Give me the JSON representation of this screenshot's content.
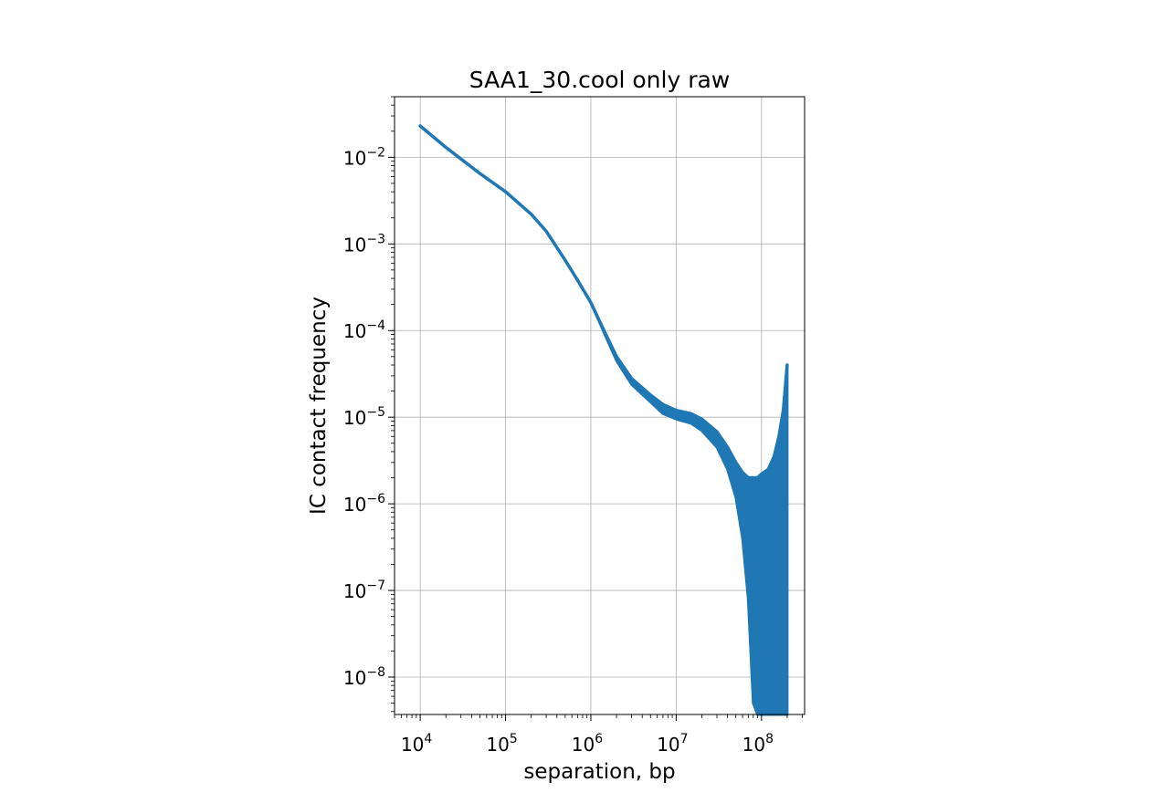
{
  "chart_data": {
    "type": "line",
    "title": "SAA1_30.cool only raw",
    "xlabel": "separation, bp",
    "ylabel": "IC contact frequency",
    "xscale": "log",
    "yscale": "log",
    "grid": true,
    "line_color": "#1f77b4",
    "xlim": [
      5000,
      320000000
    ],
    "ylim": [
      3.7e-09,
      0.05
    ],
    "xticks": [
      {
        "value": 10000,
        "base": "10",
        "exp": "4"
      },
      {
        "value": 100000,
        "base": "10",
        "exp": "5"
      },
      {
        "value": 1000000,
        "base": "10",
        "exp": "6"
      },
      {
        "value": 10000000,
        "base": "10",
        "exp": "7"
      },
      {
        "value": 100000000,
        "base": "10",
        "exp": "8"
      }
    ],
    "yticks": [
      {
        "value": 1e-08,
        "base": "10",
        "exp": "−8"
      },
      {
        "value": 1e-07,
        "base": "10",
        "exp": "−7"
      },
      {
        "value": 1e-06,
        "base": "10",
        "exp": "−6"
      },
      {
        "value": 1e-05,
        "base": "10",
        "exp": "−5"
      },
      {
        "value": 0.0001,
        "base": "10",
        "exp": "−4"
      },
      {
        "value": 0.001,
        "base": "10",
        "exp": "−3"
      },
      {
        "value": 0.01,
        "base": "10",
        "exp": "−2"
      }
    ],
    "series": [
      {
        "x": [
          10000,
          20000,
          50000,
          100000,
          200000,
          300000,
          500000,
          700000,
          1000000,
          1500000,
          2000000,
          3000000,
          5000000,
          7000000,
          10000000,
          15000000,
          20000000,
          30000000,
          40000000,
          50000000,
          60000000,
          70000000,
          80000000,
          90000000,
          100000000,
          120000000,
          140000000,
          160000000,
          180000000,
          200000000
        ],
        "y": [
          0.023,
          0.013,
          0.0065,
          0.004,
          0.0022,
          0.0014,
          0.00065,
          0.00038,
          0.00021,
          9e-05,
          5e-05,
          2.8e-05,
          1.8e-05,
          1.4e-05,
          1.2e-05,
          1.1e-05,
          9.5e-06,
          6.8e-06,
          4.5e-06,
          3e-06,
          2.3e-06,
          2e-06,
          2e-06,
          2e-06,
          2.2e-06,
          2.5e-06,
          3.5e-06,
          6e-06,
          1.2e-05,
          4e-05
        ],
        "y_low": [
          0.023,
          0.013,
          0.0065,
          0.004,
          0.0022,
          0.0014,
          0.00065,
          0.00038,
          0.00021,
          8.5e-05,
          4.5e-05,
          2.4e-05,
          1.5e-05,
          1.1e-05,
          9.5e-06,
          8.5e-06,
          7e-06,
          4.5e-06,
          2.5e-06,
          1.2e-06,
          4e-07,
          8e-08,
          5e-09,
          3.7e-09,
          3.7e-09,
          3.7e-09,
          3.7e-09,
          3.7e-09,
          3.7e-09,
          3.7e-09
        ]
      }
    ]
  }
}
